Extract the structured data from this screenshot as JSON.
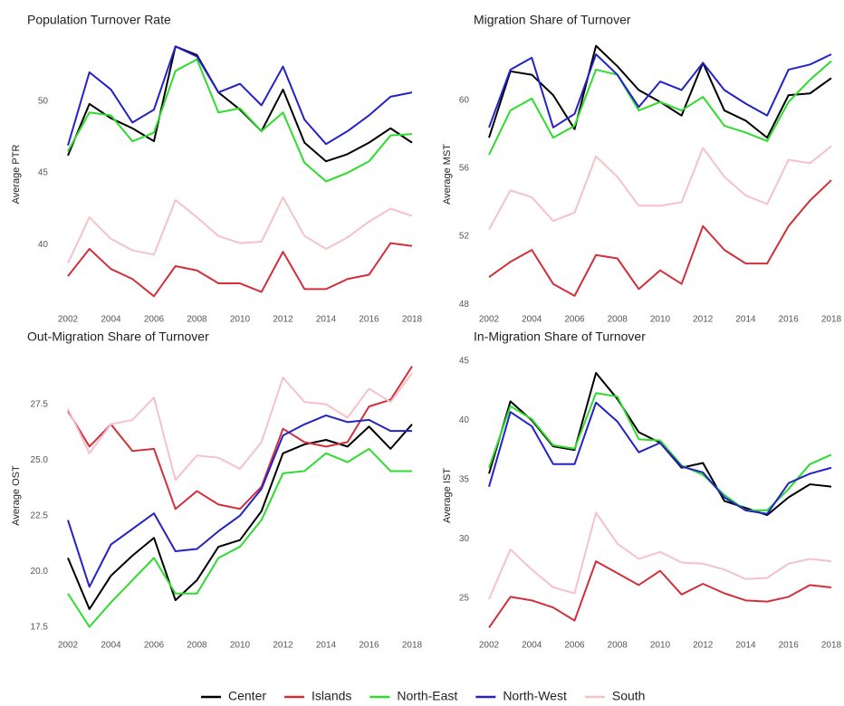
{
  "chart_data": [
    {
      "type": "line",
      "title": "Population Turnover Rate",
      "y_label": "Average PTR",
      "x": [
        2002,
        2003,
        2004,
        2005,
        2006,
        2007,
        2008,
        2009,
        2010,
        2011,
        2012,
        2013,
        2014,
        2015,
        2016,
        2017,
        2018
      ],
      "xlim": [
        2002,
        2018
      ],
      "xticks": [
        2002,
        2004,
        2006,
        2008,
        2010,
        2012,
        2014,
        2016,
        2018
      ],
      "ylim": [
        35.6,
        54.2
      ],
      "yticks": [
        40,
        45,
        50
      ],
      "grid": false,
      "series": [
        {
          "name": "Center",
          "color": "#000000",
          "values": [
            46.2,
            49.8,
            48.8,
            48.1,
            47.2,
            53.8,
            53.2,
            50.6,
            49.4,
            47.9,
            50.8,
            47.1,
            45.8,
            46.3,
            47.1,
            48.1,
            47.1
          ]
        },
        {
          "name": "Islands",
          "color": "#d1303a",
          "values": [
            37.8,
            39.7,
            38.3,
            37.6,
            36.4,
            38.5,
            38.2,
            37.3,
            37.3,
            36.7,
            39.5,
            36.9,
            36.9,
            37.6,
            37.9,
            40.1,
            39.9
          ]
        },
        {
          "name": "North-East",
          "color": "#2edc2e",
          "values": [
            46.5,
            49.2,
            49.0,
            47.2,
            47.8,
            52.1,
            52.9,
            49.2,
            49.5,
            47.9,
            49.2,
            45.7,
            44.4,
            45.0,
            45.8,
            47.6,
            47.7
          ]
        },
        {
          "name": "North-West",
          "color": "#2222c8",
          "values": [
            46.9,
            52.0,
            50.8,
            48.5,
            49.4,
            53.8,
            53.1,
            50.6,
            51.2,
            49.7,
            52.4,
            48.7,
            47.0,
            47.9,
            49.0,
            50.3,
            50.6
          ]
        },
        {
          "name": "South",
          "color": "#f5c1ca",
          "values": [
            38.7,
            41.9,
            40.4,
            39.6,
            39.3,
            43.1,
            41.9,
            40.6,
            40.1,
            40.2,
            43.3,
            40.6,
            39.7,
            40.5,
            41.6,
            42.5,
            42.0
          ]
        }
      ]
    },
    {
      "type": "line",
      "title": "Migration Share of Turnover",
      "y_label": "Average MST",
      "x": [
        2002,
        2003,
        2004,
        2005,
        2006,
        2007,
        2008,
        2009,
        2010,
        2011,
        2012,
        2013,
        2014,
        2015,
        2016,
        2017,
        2018
      ],
      "xlim": [
        2002,
        2018
      ],
      "xticks": [
        2002,
        2004,
        2006,
        2008,
        2010,
        2012,
        2014,
        2016,
        2018
      ],
      "ylim": [
        47.8,
        63.5
      ],
      "yticks": [
        48,
        52,
        56,
        60
      ],
      "grid": false,
      "series": [
        {
          "name": "Center",
          "color": "#000000",
          "values": [
            57.8,
            61.7,
            61.5,
            60.3,
            58.3,
            63.2,
            62.0,
            60.6,
            59.9,
            59.1,
            62.2,
            59.4,
            58.8,
            57.8,
            60.3,
            60.4,
            61.3
          ]
        },
        {
          "name": "Islands",
          "color": "#d1303a",
          "values": [
            49.6,
            50.5,
            51.2,
            49.2,
            48.5,
            50.9,
            50.7,
            48.9,
            50.0,
            49.2,
            52.6,
            51.2,
            50.4,
            50.4,
            52.6,
            54.1,
            55.3
          ]
        },
        {
          "name": "North-East",
          "color": "#2edc2e",
          "values": [
            56.8,
            59.4,
            60.1,
            57.8,
            58.5,
            61.8,
            61.5,
            59.4,
            59.9,
            59.4,
            60.2,
            58.5,
            58.1,
            57.6,
            59.9,
            61.2,
            62.3
          ]
        },
        {
          "name": "North-West",
          "color": "#2222c8",
          "values": [
            58.4,
            61.8,
            62.5,
            58.4,
            59.2,
            62.7,
            61.5,
            59.6,
            61.1,
            60.6,
            62.2,
            60.6,
            59.8,
            59.1,
            61.8,
            62.1,
            62.7
          ]
        },
        {
          "name": "South",
          "color": "#f5c1ca",
          "values": [
            52.4,
            54.7,
            54.3,
            52.9,
            53.4,
            56.7,
            55.5,
            53.8,
            53.8,
            54.0,
            57.2,
            55.5,
            54.4,
            53.9,
            56.5,
            56.3,
            57.3
          ]
        }
      ]
    },
    {
      "type": "line",
      "title": "Out-Migration Share of Turnover",
      "y_label": "Average OST",
      "x": [
        2002,
        2003,
        2004,
        2005,
        2006,
        2007,
        2008,
        2009,
        2010,
        2011,
        2012,
        2013,
        2014,
        2015,
        2016,
        2017,
        2018
      ],
      "xlim": [
        2002,
        2018
      ],
      "xticks": [
        2002,
        2004,
        2006,
        2008,
        2010,
        2012,
        2014,
        2016,
        2018
      ],
      "ylim": [
        17.2,
        29.6
      ],
      "yticks": [
        17.5,
        {
          "value": 20,
          "label": "20.0"
        },
        22.5,
        {
          "value": 25,
          "label": "25.0"
        },
        27.5
      ],
      "grid": false,
      "series": [
        {
          "name": "Center",
          "color": "#000000",
          "values": [
            20.6,
            18.3,
            19.8,
            20.7,
            21.5,
            18.7,
            19.6,
            21.1,
            21.4,
            22.7,
            25.3,
            25.7,
            25.9,
            25.6,
            26.5,
            25.5,
            26.6
          ]
        },
        {
          "name": "Islands",
          "color": "#d1303a",
          "values": [
            27.2,
            25.6,
            26.6,
            25.4,
            25.5,
            22.8,
            23.6,
            23.0,
            22.8,
            23.8,
            26.4,
            25.8,
            25.6,
            25.8,
            27.4,
            27.7,
            29.2
          ]
        },
        {
          "name": "North-East",
          "color": "#2edc2e",
          "values": [
            19.0,
            17.5,
            18.6,
            19.6,
            20.6,
            19.0,
            19.0,
            20.6,
            21.1,
            22.3,
            24.4,
            24.5,
            25.3,
            24.9,
            25.5,
            24.5,
            24.5
          ]
        },
        {
          "name": "North-West",
          "color": "#2222c8",
          "values": [
            22.3,
            19.3,
            21.2,
            21.9,
            22.6,
            20.9,
            21.0,
            21.8,
            22.5,
            23.7,
            26.1,
            26.6,
            27.0,
            26.7,
            26.8,
            26.3,
            26.3
          ]
        },
        {
          "name": "South",
          "color": "#f5c1ca",
          "values": [
            27.3,
            25.3,
            26.6,
            26.8,
            27.8,
            24.1,
            25.2,
            25.1,
            24.6,
            25.8,
            28.7,
            27.6,
            27.5,
            26.9,
            28.2,
            27.6,
            28.9
          ]
        }
      ]
    },
    {
      "type": "line",
      "title": "In-Migration Share of Turnover",
      "y_label": "Average IST",
      "x": [
        2002,
        2003,
        2004,
        2005,
        2006,
        2007,
        2008,
        2009,
        2010,
        2011,
        2012,
        2013,
        2014,
        2015,
        2016,
        2017,
        2018
      ],
      "xlim": [
        2002,
        2018
      ],
      "xticks": [
        2002,
        2004,
        2006,
        2008,
        2010,
        2012,
        2014,
        2016,
        2018
      ],
      "ylim": [
        22.0,
        45.3
      ],
      "yticks": [
        25,
        30,
        35,
        40,
        45
      ],
      "grid": false,
      "series": [
        {
          "name": "Center",
          "color": "#000000",
          "values": [
            35.5,
            41.6,
            40.0,
            37.8,
            37.5,
            44.0,
            41.8,
            39.0,
            38.1,
            36.0,
            36.4,
            33.2,
            32.6,
            32.0,
            33.5,
            34.6,
            34.4
          ]
        },
        {
          "name": "Islands",
          "color": "#d1303a",
          "values": [
            22.5,
            25.1,
            24.8,
            24.2,
            23.1,
            28.1,
            27.1,
            26.1,
            27.3,
            25.3,
            26.2,
            25.4,
            24.8,
            24.7,
            25.1,
            26.1,
            25.9
          ]
        },
        {
          "name": "North-East",
          "color": "#2edc2e",
          "values": [
            36.0,
            41.2,
            40.1,
            37.9,
            37.6,
            42.3,
            42.0,
            38.4,
            38.3,
            36.2,
            35.4,
            33.7,
            32.4,
            32.4,
            34.2,
            36.3,
            37.1
          ]
        },
        {
          "name": "North-West",
          "color": "#2222c8",
          "values": [
            34.4,
            40.7,
            39.5,
            36.3,
            36.3,
            41.5,
            39.9,
            37.3,
            38.1,
            36.1,
            35.6,
            33.5,
            32.4,
            32.1,
            34.7,
            35.5,
            36.0
          ]
        },
        {
          "name": "South",
          "color": "#f5c1ca",
          "values": [
            24.9,
            29.1,
            27.4,
            25.9,
            25.4,
            32.2,
            29.6,
            28.3,
            28.9,
            28.0,
            27.9,
            27.4,
            26.6,
            26.7,
            27.9,
            28.3,
            28.1
          ]
        }
      ]
    }
  ]
}
